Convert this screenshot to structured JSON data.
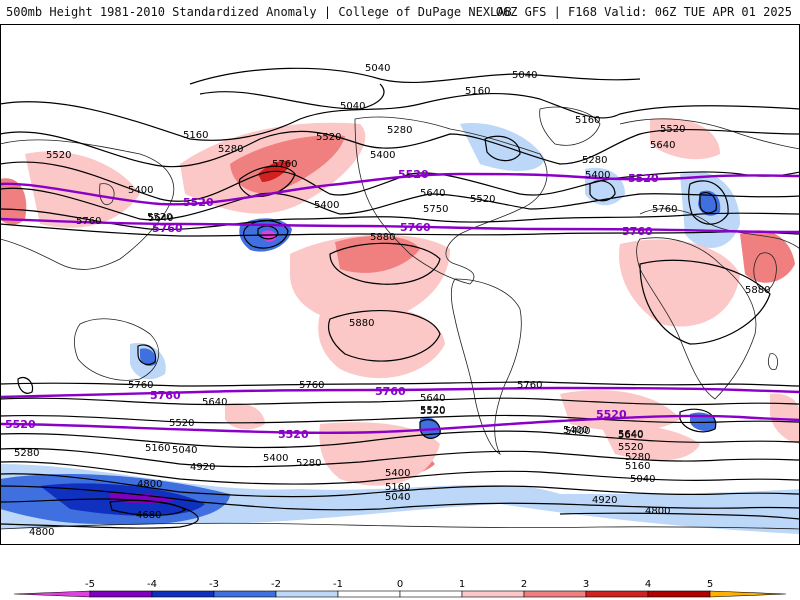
{
  "header": {
    "left": "500mb Height 1981-2010 Standardized Anomaly | College of DuPage NEXLAB",
    "right": "06Z GFS | F168 Valid: 06Z TUE APR 01 2025"
  },
  "contour_labels": {
    "c1": "5040",
    "c2": "5040",
    "c3": "5040",
    "c4": "5160",
    "c5": "5160",
    "c6": "5160",
    "c7": "5280",
    "c8": "5280",
    "c9": "5280",
    "c10": "5400",
    "c11": "5400",
    "c12": "5400",
    "c13": "5400",
    "c14": "5520",
    "c15": "5520",
    "c16": "5520",
    "c17": "5520",
    "c18": "5520",
    "c19": "5640",
    "c20": "5640",
    "c21": "5640",
    "c22": "5760",
    "c23": "5760",
    "c24": "5760",
    "c25": "5880",
    "c26": "5880",
    "c27": "5880",
    "c28": "5750",
    "s1": "5760",
    "s2": "5760",
    "s3": "5760",
    "s4": "5640",
    "s5": "5640",
    "s6": "5640",
    "s7": "5520",
    "s8": "5520",
    "s9": "5400",
    "s10": "5400",
    "s11": "5400",
    "s12": "5280",
    "s13": "5280",
    "s14": "5280",
    "s15": "5160",
    "s16": "5160",
    "s17": "5040",
    "s18": "5040",
    "s19": "5040",
    "s20": "4920",
    "s21": "4920",
    "s22": "4800",
    "s23": "4800",
    "s24": "4800",
    "s25": "4680",
    "s26": "5520",
    "s27": "5520",
    "s28": "5640",
    "s29": "5400",
    "s30": "5160"
  },
  "purple_labels": {
    "n1": "5520",
    "n2": "5520",
    "n3": "5520",
    "n4": "5760",
    "n5": "5760",
    "n6": "5760",
    "sA": "5760",
    "sB": "5760",
    "sC": "5520",
    "sD": "5520",
    "sE": "5520"
  },
  "colorbar": {
    "ticks": [
      "-5",
      "-4",
      "-3",
      "-2",
      "-1",
      "0",
      "1",
      "2",
      "3",
      "4",
      "5"
    ],
    "colors": [
      "#e040e0",
      "#8000c0",
      "#1030c0",
      "#4070e0",
      "#bcd7f7",
      "#ffffff",
      "#ffffff",
      "#fbc7c7",
      "#f08080",
      "#d02020",
      "#b00000",
      "#ffb000"
    ]
  }
}
